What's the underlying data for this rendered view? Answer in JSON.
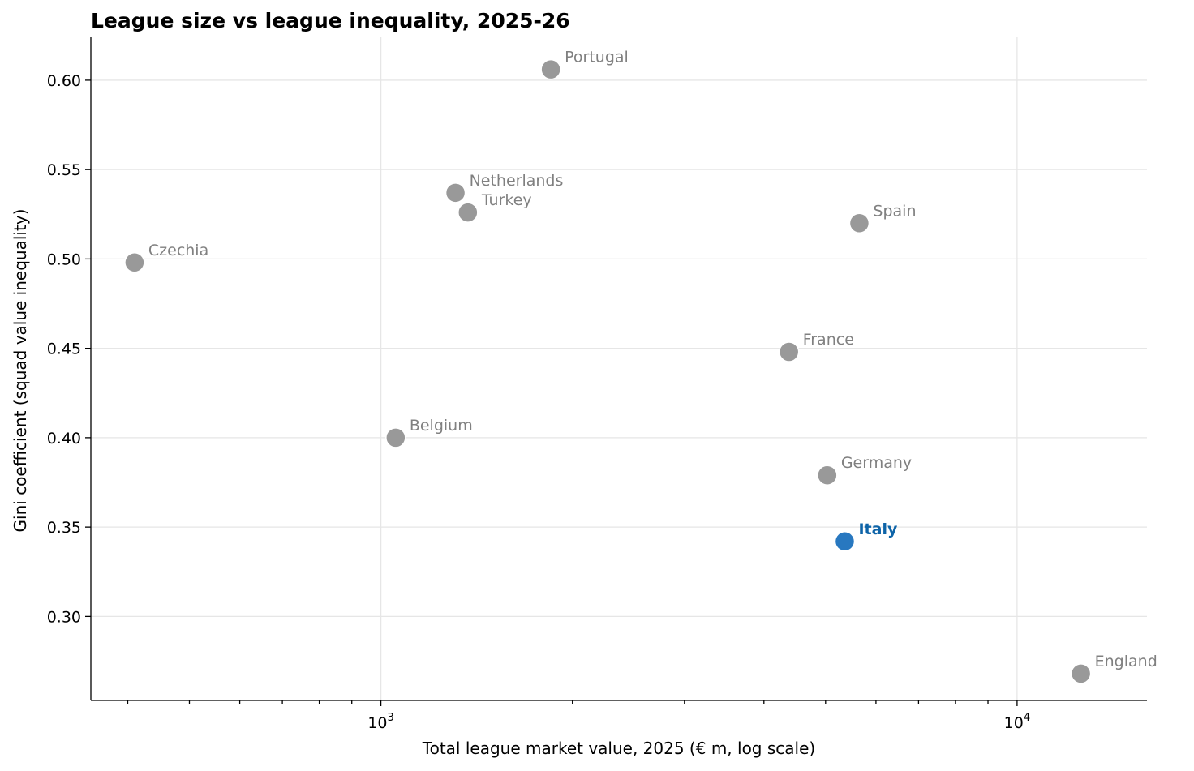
{
  "chart_data": {
    "type": "scatter",
    "title": "League size vs league inequality, 2025-26",
    "xlabel": "Total league market value, 2025 (€ m, log scale)",
    "ylabel": "Gini coefficient (squad value inequality)",
    "x_scale": "log",
    "xlim": [
      350,
      16000
    ],
    "ylim": [
      0.253,
      0.624
    ],
    "x_ticks_major": [
      {
        "value": 1000,
        "base": "10",
        "exp": "3"
      },
      {
        "value": 10000,
        "base": "10",
        "exp": "4"
      }
    ],
    "y_ticks": [
      "0.30",
      "0.35",
      "0.40",
      "0.45",
      "0.50",
      "0.55",
      "0.60"
    ],
    "grid": true,
    "colors": {
      "default": "#999999",
      "highlight": "#2878c0",
      "highlight_label": "#0e64a8",
      "default_label": "#808080"
    },
    "points": [
      {
        "label": "Portugal",
        "x": 1850,
        "y": 0.606,
        "highlight": false
      },
      {
        "label": "Netherlands",
        "x": 1310,
        "y": 0.537,
        "highlight": false
      },
      {
        "label": "Turkey",
        "x": 1370,
        "y": 0.526,
        "highlight": false
      },
      {
        "label": "Spain",
        "x": 5650,
        "y": 0.52,
        "highlight": false
      },
      {
        "label": "Czechia",
        "x": 410,
        "y": 0.498,
        "highlight": false
      },
      {
        "label": "France",
        "x": 4380,
        "y": 0.448,
        "highlight": false
      },
      {
        "label": "Belgium",
        "x": 1055,
        "y": 0.4,
        "highlight": false
      },
      {
        "label": "Germany",
        "x": 5030,
        "y": 0.379,
        "highlight": false
      },
      {
        "label": "Italy",
        "x": 5360,
        "y": 0.342,
        "highlight": true
      },
      {
        "label": "England",
        "x": 12600,
        "y": 0.268,
        "highlight": false
      }
    ]
  }
}
